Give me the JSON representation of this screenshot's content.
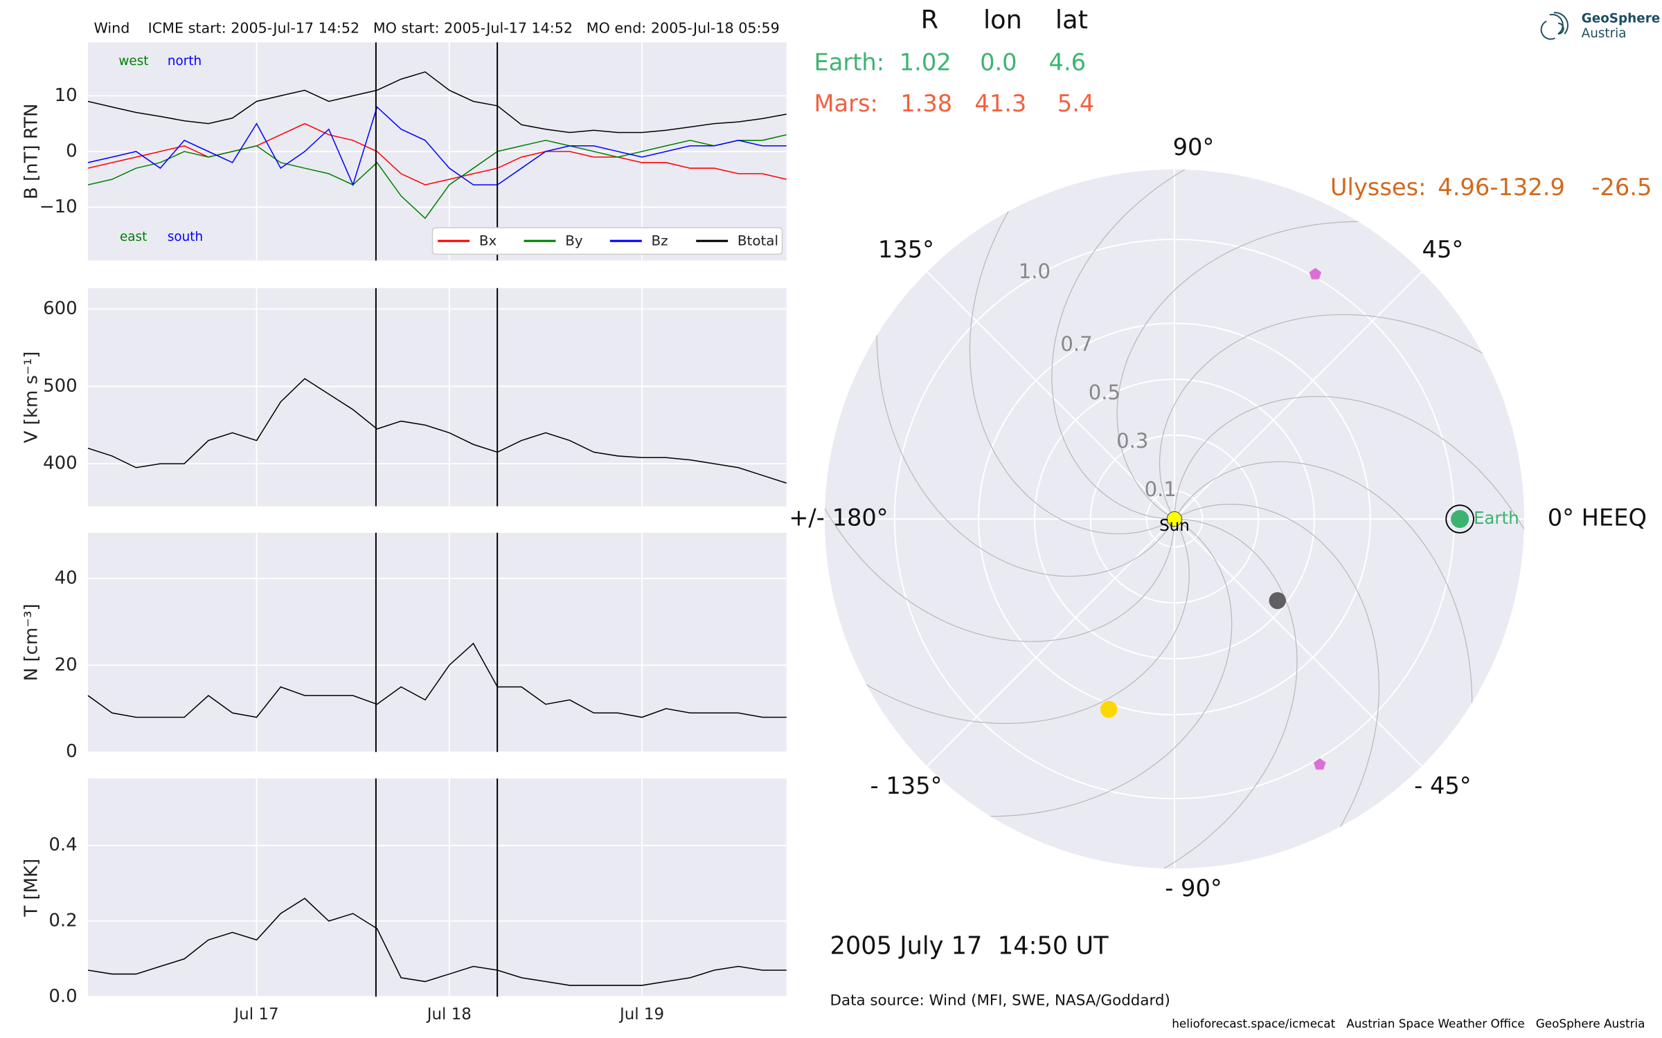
{
  "chart_data": [
    {
      "type": "line",
      "title": "Wind    ICME start: 2005-Jul-17 14:52   MO start: 2005-Jul-17 14:52   MO end: 2005-Jul-18 05:59",
      "ylabel": "B [nT] RTN",
      "x": [
        "2005-07-16T03:00",
        "2005-07-16T06:00",
        "2005-07-16T09:00",
        "2005-07-16T12:00",
        "2005-07-16T15:00",
        "2005-07-16T18:00",
        "2005-07-16T21:00",
        "2005-07-17T00:00",
        "2005-07-17T03:00",
        "2005-07-17T06:00",
        "2005-07-17T09:00",
        "2005-07-17T12:00",
        "2005-07-17T15:00",
        "2005-07-17T18:00",
        "2005-07-17T21:00",
        "2005-07-18T00:00",
        "2005-07-18T03:00",
        "2005-07-18T06:00",
        "2005-07-18T09:00",
        "2005-07-18T12:00",
        "2005-07-18T15:00",
        "2005-07-18T18:00",
        "2005-07-18T21:00",
        "2005-07-19T00:00",
        "2005-07-19T03:00",
        "2005-07-19T06:00",
        "2005-07-19T09:00",
        "2005-07-19T12:00",
        "2005-07-19T15:00",
        "2005-07-19T18:00"
      ],
      "series": [
        {
          "name": "Bx",
          "color": "#ff0000",
          "values": [
            -3,
            -2,
            -1,
            0,
            1,
            -1,
            0,
            1,
            3,
            5,
            3,
            2,
            0,
            -4,
            -6,
            -5,
            -4,
            -3,
            -1,
            0,
            0,
            -1,
            -1,
            -2,
            -2,
            -3,
            -3,
            -4,
            -4,
            -5
          ]
        },
        {
          "name": "By",
          "color": "#008000",
          "values": [
            -6,
            -5,
            -3,
            -2,
            0,
            -1,
            0,
            1,
            -2,
            -3,
            -4,
            -6,
            -2,
            -8,
            -12,
            -6,
            -3,
            0,
            1,
            2,
            1,
            0,
            -1,
            0,
            1,
            2,
            1,
            2,
            2,
            3
          ]
        },
        {
          "name": "Bz",
          "color": "#0000ff",
          "values": [
            -2,
            -1,
            0,
            -3,
            2,
            0,
            -2,
            5,
            -3,
            0,
            4,
            -6,
            8,
            4,
            2,
            -3,
            -6,
            -6,
            -3,
            0,
            1,
            1,
            0,
            -1,
            0,
            1,
            1,
            2,
            1,
            1
          ]
        },
        {
          "name": "Btotal",
          "color": "#000000",
          "values": [
            9,
            8,
            7,
            6.3,
            5.5,
            5,
            6,
            9,
            10,
            11,
            9,
            10,
            11,
            13,
            14.3,
            11,
            9,
            8.2,
            4.8,
            4,
            3.4,
            3.8,
            3.4,
            3.4,
            3.8,
            4.4,
            5,
            5.3,
            5.9,
            6.7
          ]
        }
      ],
      "xlim": [
        "2005-07-16T03:00",
        "2005-07-19T18:00"
      ],
      "xticks": [
        "2005-07-17T00:00",
        "2005-07-18T00:00",
        "2005-07-19T00:00"
      ],
      "ylim": [
        -19.6,
        19.6
      ],
      "yticks": [
        {
          "value": -10,
          "label": "−10"
        },
        0,
        10
      ],
      "grid": true,
      "legend": "lower right",
      "annotations": [
        {
          "text": "west",
          "color": "#008000"
        },
        {
          "text": "north",
          "color": "#0000ff"
        },
        {
          "text": "east",
          "color": "#008000"
        },
        {
          "text": "south",
          "color": "#0000ff"
        }
      ],
      "event_lines": [
        "2005-07-17T14:52",
        "2005-07-18T05:59"
      ]
    },
    {
      "type": "line",
      "ylabel": "V [km s⁻¹]",
      "x": [
        "2005-07-16T03:00",
        "2005-07-16T06:00",
        "2005-07-16T09:00",
        "2005-07-16T12:00",
        "2005-07-16T15:00",
        "2005-07-16T18:00",
        "2005-07-16T21:00",
        "2005-07-17T00:00",
        "2005-07-17T03:00",
        "2005-07-17T06:00",
        "2005-07-17T09:00",
        "2005-07-17T12:00",
        "2005-07-17T15:00",
        "2005-07-17T18:00",
        "2005-07-17T21:00",
        "2005-07-18T00:00",
        "2005-07-18T03:00",
        "2005-07-18T06:00",
        "2005-07-18T09:00",
        "2005-07-18T12:00",
        "2005-07-18T15:00",
        "2005-07-18T18:00",
        "2005-07-18T21:00",
        "2005-07-19T00:00",
        "2005-07-19T03:00",
        "2005-07-19T06:00",
        "2005-07-19T09:00",
        "2005-07-19T12:00",
        "2005-07-19T15:00",
        "2005-07-19T18:00"
      ],
      "series": [
        {
          "color": "#000000",
          "values": [
            420,
            410,
            395,
            400,
            400,
            430,
            440,
            430,
            480,
            510,
            490,
            470,
            445,
            455,
            450,
            440,
            425,
            415,
            430,
            440,
            430,
            415,
            410,
            408,
            408,
            405,
            400,
            395,
            385,
            375
          ]
        }
      ],
      "xlim": [
        "2005-07-16T03:00",
        "2005-07-19T18:00"
      ],
      "xticks": [
        "2005-07-17T00:00",
        "2005-07-18T00:00",
        "2005-07-19T00:00"
      ],
      "ylim": [
        345,
        627
      ],
      "yticks": [
        400,
        500,
        600
      ],
      "grid": true
    },
    {
      "type": "line",
      "ylabel": "N [cm⁻³]",
      "x": [
        "2005-07-16T03:00",
        "2005-07-16T06:00",
        "2005-07-16T09:00",
        "2005-07-16T12:00",
        "2005-07-16T15:00",
        "2005-07-16T18:00",
        "2005-07-16T21:00",
        "2005-07-17T00:00",
        "2005-07-17T03:00",
        "2005-07-17T06:00",
        "2005-07-17T09:00",
        "2005-07-17T12:00",
        "2005-07-17T15:00",
        "2005-07-17T18:00",
        "2005-07-17T21:00",
        "2005-07-18T00:00",
        "2005-07-18T03:00",
        "2005-07-18T06:00",
        "2005-07-18T09:00",
        "2005-07-18T12:00",
        "2005-07-18T15:00",
        "2005-07-18T18:00",
        "2005-07-18T21:00",
        "2005-07-19T00:00",
        "2005-07-19T03:00",
        "2005-07-19T06:00",
        "2005-07-19T09:00",
        "2005-07-19T12:00",
        "2005-07-19T15:00",
        "2005-07-19T18:00"
      ],
      "series": [
        {
          "color": "#000000",
          "values": [
            13,
            9,
            8,
            8,
            8,
            13,
            9,
            8,
            15,
            13,
            13,
            13,
            11,
            15,
            12,
            20,
            25,
            15,
            15,
            11,
            12,
            9,
            9,
            8,
            10,
            9,
            9,
            9,
            8,
            8
          ]
        }
      ],
      "xlim": [
        "2005-07-16T03:00",
        "2005-07-19T18:00"
      ],
      "xticks": [
        "2005-07-17T00:00",
        "2005-07-18T00:00",
        "2005-07-19T00:00"
      ],
      "ylim": [
        0,
        50.5
      ],
      "yticks": [
        0,
        20,
        40
      ],
      "grid": true
    },
    {
      "type": "line",
      "ylabel": "T [MK]",
      "x": [
        "2005-07-16T03:00",
        "2005-07-16T06:00",
        "2005-07-16T09:00",
        "2005-07-16T12:00",
        "2005-07-16T15:00",
        "2005-07-16T18:00",
        "2005-07-16T21:00",
        "2005-07-17T00:00",
        "2005-07-17T03:00",
        "2005-07-17T06:00",
        "2005-07-17T09:00",
        "2005-07-17T12:00",
        "2005-07-17T15:00",
        "2005-07-17T18:00",
        "2005-07-17T21:00",
        "2005-07-18T00:00",
        "2005-07-18T03:00",
        "2005-07-18T06:00",
        "2005-07-18T09:00",
        "2005-07-18T12:00",
        "2005-07-18T15:00",
        "2005-07-18T18:00",
        "2005-07-18T21:00",
        "2005-07-19T00:00",
        "2005-07-19T03:00",
        "2005-07-19T06:00",
        "2005-07-19T09:00",
        "2005-07-19T12:00",
        "2005-07-19T15:00",
        "2005-07-19T18:00"
      ],
      "series": [
        {
          "color": "#000000",
          "values": [
            0.07,
            0.06,
            0.06,
            0.08,
            0.1,
            0.15,
            0.17,
            0.15,
            0.22,
            0.26,
            0.2,
            0.22,
            0.18,
            0.05,
            0.04,
            0.06,
            0.08,
            0.07,
            0.05,
            0.04,
            0.03,
            0.03,
            0.03,
            0.03,
            0.04,
            0.05,
            0.07,
            0.08,
            0.07,
            0.07
          ]
        }
      ],
      "xlim": [
        "2005-07-16T03:00",
        "2005-07-19T18:00"
      ],
      "xticks": [
        {
          "value": "2005-07-17T00:00",
          "label": "Jul 17"
        },
        {
          "value": "2005-07-18T00:00",
          "label": "Jul 18"
        },
        {
          "value": "2005-07-19T00:00",
          "label": "Jul 19"
        }
      ],
      "ylim": [
        0,
        0.577
      ],
      "yticks": [
        {
          "value": 0,
          "label": "0.0"
        },
        0.2,
        0.4
      ],
      "grid": true
    },
    {
      "type": "polar",
      "rlim": [
        0,
        1.25
      ],
      "rticks": [
        0.1,
        0.3,
        0.5,
        0.7,
        {
          "value": 1,
          "label": "1.0"
        }
      ],
      "thetaticks": [
        {
          "value": 0,
          "label": "0° HEEQ"
        },
        {
          "value": 45,
          "label": "45°"
        },
        {
          "value": 90,
          "label": "90°"
        },
        {
          "value": 135,
          "label": "135°"
        },
        {
          "value": 180,
          "label": "+/- 180°"
        },
        {
          "value": -135,
          "label": "- 135°"
        },
        {
          "value": -90,
          "label": "- 90°"
        },
        {
          "value": -45,
          "label": "- 45°"
        }
      ],
      "table_header": [
        "R",
        "lon",
        "lat"
      ],
      "bodies": [
        {
          "name": "Sun",
          "color": "#ffff00",
          "r": 0,
          "lon": 0
        },
        {
          "name": "Earth",
          "table_label": "Earth:",
          "color": "#3cb371",
          "r": 1.02,
          "lon": 0,
          "lat": 4.6,
          "value_labels": [
            "1.02",
            "0.0",
            "4.6"
          ]
        },
        {
          "name": "Mars",
          "table_label": "Mars:",
          "color": "#f2603f",
          "r": 1.38,
          "lon": 41.3,
          "lat": 5.4,
          "value_labels": [
            "1.38",
            "41.3",
            "5.4"
          ]
        },
        {
          "name": "Ulysses",
          "table_label": "Ulysses:",
          "color": "#d2691e",
          "r": 4.96,
          "lon": -132.9,
          "lat": -26.5,
          "value_labels": [
            "4.96",
            "-132.9",
            "-26.5"
          ]
        }
      ],
      "markers": [
        {
          "r": 0.47,
          "lon": -38.4,
          "color": "#606060",
          "shape": "circle"
        },
        {
          "r": 0.72,
          "lon": -109,
          "color": "#ffd700",
          "shape": "circle"
        },
        {
          "r": 1.01,
          "lon": 60.1,
          "color": "#da70d6",
          "shape": "pentagon"
        },
        {
          "r": 1.02,
          "lon": -59.4,
          "color": "#da70d6",
          "shape": "pentagon"
        }
      ],
      "date": "2005 July 17  14:50 UT",
      "source": "Data source: Wind (MFI, SWE, NASA/Goddard)"
    }
  ],
  "logo": [
    "GeoSphere",
    "Austria"
  ],
  "footer": "helioforecast.space/icmecat   Austrian Space Weather Office   GeoSphere Austria"
}
